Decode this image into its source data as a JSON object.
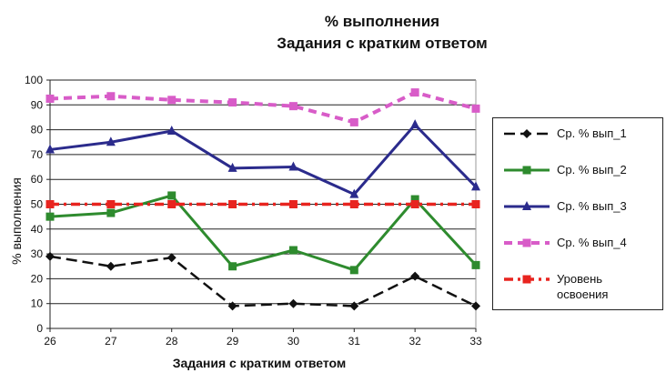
{
  "chart_data": {
    "type": "line",
    "title": "% выполнения",
    "subtitle": "Задания с кратким ответом",
    "xlabel": "Задания с кратким ответом",
    "ylabel": "% выполнения",
    "categories": [
      "26",
      "27",
      "28",
      "29",
      "30",
      "31",
      "32",
      "33"
    ],
    "ylim": [
      0,
      100
    ],
    "yticks": [
      "0",
      "10",
      "20",
      "30",
      "40",
      "50",
      "60",
      "70",
      "80",
      "90",
      "100"
    ],
    "grid": true,
    "legend_position": "right",
    "series": [
      {
        "name": "Ср. % вып_1",
        "values": [
          29,
          25,
          28.5,
          9,
          10,
          9,
          21,
          9
        ],
        "color": "#111111",
        "marker": "diamond",
        "dash": "long"
      },
      {
        "name": "Ср. % вып_2",
        "values": [
          45,
          46.5,
          53.5,
          25,
          31.5,
          23.5,
          52,
          25.5
        ],
        "color": "#2e8b2e",
        "marker": "square",
        "dash": "solid"
      },
      {
        "name": "Ср. % вып_3",
        "values": [
          72,
          75,
          79.5,
          64.5,
          65,
          54,
          82,
          57
        ],
        "color": "#2b2b8c",
        "marker": "triangle",
        "dash": "solid"
      },
      {
        "name": "Ср. % вып_4",
        "values": [
          92.5,
          93.5,
          92,
          91,
          89.5,
          83,
          95,
          88.5
        ],
        "color": "#d85cc8",
        "marker": "square",
        "dash": "dash"
      },
      {
        "name": "Уровень\nосвоения",
        "values": [
          50,
          50,
          50,
          50,
          50,
          50,
          50,
          50
        ],
        "color": "#e8241f",
        "marker": "square",
        "dash": "dashdot"
      }
    ]
  }
}
